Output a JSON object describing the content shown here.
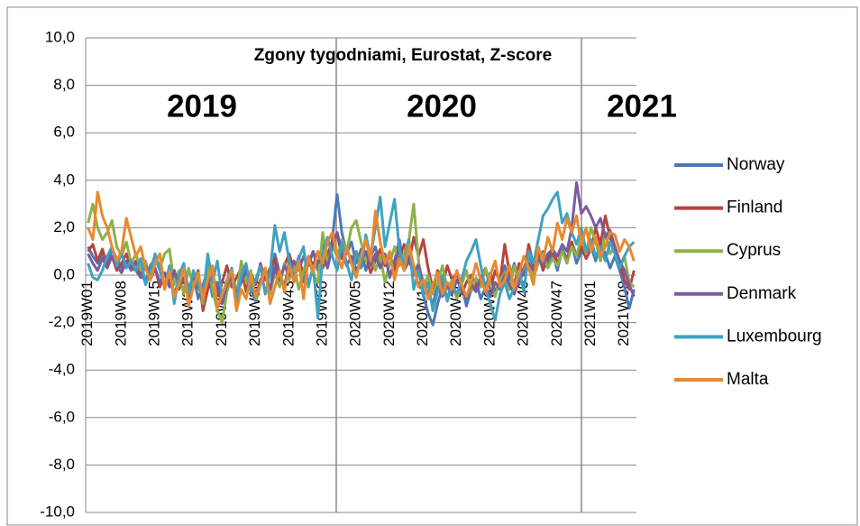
{
  "chart_data": {
    "type": "line",
    "title": "Zgony tygodniami, Eurostat,  Z-score",
    "annotations": [
      "2019",
      "2020",
      "2021"
    ],
    "categories": [
      "2019W01",
      null,
      null,
      null,
      null,
      null,
      null,
      "2019W08",
      null,
      null,
      null,
      null,
      null,
      null,
      "2019W15",
      null,
      null,
      null,
      null,
      null,
      null,
      "2019W22",
      null,
      null,
      null,
      null,
      null,
      null,
      "2019W29",
      null,
      null,
      null,
      null,
      null,
      null,
      "2019W36",
      null,
      null,
      null,
      null,
      null,
      null,
      "2019W43",
      null,
      null,
      null,
      null,
      null,
      null,
      "2019W50",
      null,
      null,
      null,
      null,
      null,
      null,
      "2020W05",
      null,
      null,
      null,
      null,
      null,
      null,
      "2020W12",
      null,
      null,
      null,
      null,
      null,
      null,
      "2020W19",
      null,
      null,
      null,
      null,
      null,
      null,
      "2020W26",
      null,
      null,
      null,
      null,
      null,
      null,
      "2020W33",
      null,
      null,
      null,
      null,
      null,
      null,
      "2020W40",
      null,
      null,
      null,
      null,
      null,
      null,
      "2020W47",
      null,
      null,
      null,
      null,
      null,
      null,
      "2021W01",
      null,
      null,
      null,
      null,
      null,
      null,
      "2021W08",
      null,
      null
    ],
    "series": [
      {
        "name": "Norway",
        "color": "#4a7ab5",
        "values": [
          1.2,
          0.8,
          0.5,
          0.9,
          0.4,
          1.1,
          0.7,
          0.3,
          0.6,
          0.2,
          0.5,
          0.1,
          -0.3,
          0.4,
          0.7,
          0.2,
          -0.5,
          0.1,
          -0.8,
          -0.2,
          0.3,
          -0.6,
          0.0,
          -1.0,
          -0.4,
          0.2,
          -0.9,
          -0.3,
          -1.2,
          -0.5,
          0.1,
          -0.7,
          -0.2,
          0.3,
          -0.6,
          -1.1,
          -0.4,
          0.2,
          -0.8,
          0.9,
          0.1,
          -0.5,
          0.6,
          0.0,
          0.8,
          -0.3,
          0.5,
          1.0,
          0.2,
          1.3,
          0.6,
          1.5,
          3.4,
          1.8,
          0.9,
          1.4,
          0.5,
          1.1,
          0.2,
          0.8,
          1.2,
          0.4,
          0.9,
          -0.1,
          0.6,
          1.5,
          0.3,
          0.8,
          0.0,
          0.5,
          -0.8,
          -1.6,
          -2.1,
          -1.2,
          -0.5,
          -1.0,
          -0.3,
          -0.9,
          -0.4,
          -1.3,
          -0.6,
          -0.2,
          -1.0,
          -0.5,
          0.1,
          -0.7,
          -0.3,
          0.4,
          -0.2,
          0.5,
          -0.4,
          0.3,
          0.8,
          0.1,
          0.6,
          1.0,
          0.4,
          0.9,
          0.2,
          1.1,
          0.7,
          1.3,
          0.5,
          1.0,
          0.8,
          1.2,
          0.6,
          1.4,
          0.9,
          0.3,
          0.8,
          0.2,
          -0.5,
          -1.4,
          -0.6
        ]
      },
      {
        "name": "Finland",
        "color": "#b5443f",
        "values": [
          1.0,
          1.3,
          0.6,
          1.1,
          0.4,
          0.8,
          0.2,
          0.5,
          0.9,
          0.3,
          0.6,
          0.0,
          0.4,
          -0.2,
          0.3,
          -0.5,
          0.1,
          -0.3,
          0.2,
          -0.6,
          -0.1,
          -1.0,
          -0.4,
          0.2,
          -1.5,
          -0.6,
          0.0,
          -0.8,
          -0.3,
          0.4,
          -0.5,
          -0.1,
          0.3,
          -0.7,
          0.1,
          -0.4,
          0.5,
          -0.2,
          0.3,
          0.7,
          -0.3,
          0.4,
          0.9,
          0.2,
          0.6,
          0.1,
          0.8,
          0.4,
          1.0,
          0.3,
          0.9,
          1.4,
          1.8,
          0.7,
          1.2,
          0.5,
          1.0,
          0.3,
          0.8,
          0.1,
          0.6,
          1.1,
          0.4,
          0.9,
          0.2,
          0.7,
          1.3,
          0.5,
          1.6,
          0.8,
          1.5,
          0.3,
          -0.6,
          0.2,
          -0.4,
          0.4,
          -0.2,
          0.1,
          -0.8,
          -0.3,
          0.0,
          -0.5,
          -0.1,
          0.3,
          -0.6,
          0.2,
          -0.3,
          1.3,
          0.1,
          -0.4,
          0.5,
          0.0,
          1.3,
          0.4,
          0.9,
          0.2,
          0.7,
          1.1,
          0.5,
          1.0,
          0.6,
          1.4,
          0.8,
          1.2,
          0.7,
          1.1,
          2.0,
          1.3,
          2.5,
          1.6,
          1.0,
          0.5,
          -0.2,
          -0.6,
          0.2
        ]
      },
      {
        "name": "Cyprus",
        "color": "#8fb04a",
        "values": [
          2.2,
          3.0,
          2.0,
          1.5,
          1.8,
          2.3,
          1.2,
          0.8,
          1.4,
          0.5,
          0.9,
          0.2,
          0.6,
          -0.2,
          0.7,
          0.3,
          0.9,
          1.1,
          -0.4,
          0.2,
          -0.8,
          0.3,
          -0.5,
          0.1,
          -1.2,
          0.4,
          -0.6,
          -1.5,
          -2.0,
          -0.7,
          0.0,
          -0.9,
          0.6,
          -0.3,
          0.2,
          -1.0,
          -0.4,
          0.3,
          -0.8,
          0.1,
          -0.5,
          0.5,
          -0.2,
          0.4,
          -0.6,
          0.2,
          0.8,
          0.0,
          -0.3,
          1.8,
          0.5,
          1.2,
          0.8,
          1.5,
          1.0,
          2.0,
          2.3,
          1.4,
          0.6,
          1.0,
          0.2,
          0.8,
          -0.3,
          0.5,
          1.2,
          0.4,
          0.9,
          1.5,
          3.0,
          0.6,
          -0.5,
          0.0,
          -0.8,
          -0.3,
          0.4,
          -0.6,
          -0.2,
          -1.0,
          -0.4,
          0.2,
          -0.7,
          -0.1,
          -0.5,
          0.3,
          -0.4,
          -0.9,
          -0.2,
          0.1,
          -0.6,
          0.4,
          -0.3,
          0.2,
          0.6,
          -0.1,
          0.5,
          0.9,
          0.3,
          0.7,
          0.4,
          1.0,
          0.5,
          1.2,
          0.8,
          1.6,
          0.9,
          2.0,
          1.4,
          0.6,
          1.8,
          0.9,
          1.2,
          0.4,
          0.8,
          -0.3,
          -0.5
        ]
      },
      {
        "name": "Denmark",
        "color": "#7b5a9e",
        "values": [
          0.9,
          0.5,
          0.2,
          0.7,
          0.3,
          0.8,
          0.4,
          0.1,
          0.6,
          0.3,
          0.2,
          -0.1,
          0.4,
          0.0,
          0.3,
          -0.3,
          0.1,
          -0.5,
          0.2,
          -0.4,
          -0.2,
          -0.7,
          0.1,
          -0.5,
          -0.9,
          -0.3,
          0.0,
          -0.6,
          -1.2,
          -0.4,
          -0.1,
          -0.8,
          -0.3,
          0.2,
          -0.5,
          -0.9,
          -0.2,
          0.1,
          -0.6,
          0.3,
          -0.2,
          0.4,
          0.0,
          0.6,
          0.2,
          0.8,
          0.4,
          1.0,
          0.5,
          0.9,
          0.3,
          1.2,
          1.8,
          1.0,
          0.4,
          0.8,
          0.2,
          0.6,
          1.0,
          0.4,
          0.9,
          0.3,
          0.7,
          0.0,
          0.5,
          1.1,
          0.2,
          0.6,
          0.1,
          0.4,
          -0.3,
          -0.8,
          -1.2,
          -0.5,
          -0.9,
          -0.4,
          -0.8,
          -0.2,
          -0.6,
          -1.0,
          -0.4,
          -0.7,
          -0.1,
          -0.5,
          -0.9,
          -0.3,
          -0.6,
          0.0,
          -0.4,
          -0.8,
          -0.2,
          0.1,
          0.5,
          0.2,
          0.7,
          0.4,
          0.9,
          1.1,
          0.8,
          1.3,
          1.0,
          2.0,
          3.9,
          2.6,
          2.9,
          2.5,
          2.0,
          2.4,
          1.6,
          1.9,
          1.2,
          0.6,
          0.2,
          -0.4,
          -0.9
        ]
      },
      {
        "name": "Luxembourg",
        "color": "#3ea2c0",
        "values": [
          0.5,
          -0.1,
          -0.2,
          0.2,
          0.8,
          1.2,
          0.4,
          0.9,
          0.3,
          0.6,
          0.2,
          0.7,
          -0.4,
          0.1,
          0.9,
          0.3,
          -0.5,
          0.4,
          -1.2,
          0.0,
          0.5,
          -0.8,
          0.2,
          -0.4,
          -1.0,
          0.9,
          -0.3,
          0.6,
          -0.9,
          -0.2,
          0.3,
          -1.1,
          0.0,
          0.5,
          -0.7,
          -0.2,
          0.4,
          -0.8,
          0.1,
          2.1,
          1.0,
          1.8,
          0.6,
          -0.3,
          0.7,
          1.2,
          -0.5,
          0.4,
          -1.8,
          0.9,
          1.6,
          0.8,
          0.2,
          1.4,
          0.5,
          -0.2,
          1.0,
          0.3,
          1.7,
          0.8,
          2.0,
          3.3,
          1.2,
          2.2,
          3.2,
          1.1,
          0.4,
          1.5,
          -0.6,
          0.2,
          -0.9,
          -0.3,
          -1.5,
          -0.7,
          0.0,
          -1.1,
          -0.4,
          -0.8,
          -0.2,
          0.6,
          1.0,
          1.5,
          0.4,
          -0.6,
          -1.2,
          -1.9,
          -0.8,
          -0.3,
          -1.0,
          -0.5,
          0.2,
          -0.7,
          1.0,
          0.5,
          1.5,
          2.5,
          2.8,
          3.2,
          3.5,
          2.2,
          2.6,
          1.8,
          1.3,
          2.0,
          1.0,
          1.5,
          0.8,
          1.2,
          0.6,
          1.4,
          0.9,
          0.3,
          0.8,
          1.2,
          1.4
        ]
      },
      {
        "name": "Malta",
        "color": "#e8892f",
        "values": [
          2.0,
          1.5,
          3.5,
          2.5,
          2.0,
          1.2,
          0.6,
          1.0,
          2.4,
          1.6,
          0.8,
          1.2,
          0.3,
          -0.2,
          0.5,
          0.9,
          -0.6,
          0.2,
          -0.9,
          -0.4,
          0.3,
          -1.3,
          -0.5,
          0.1,
          -1.0,
          -0.2,
          0.4,
          -1.4,
          -0.8,
          -0.3,
          0.2,
          -1.5,
          -0.6,
          -1.0,
          0.0,
          -0.9,
          -0.4,
          0.3,
          -1.2,
          -0.5,
          0.2,
          -0.7,
          0.4,
          -0.3,
          0.6,
          -1.0,
          0.8,
          0.1,
          1.0,
          0.5,
          1.4,
          1.8,
          0.9,
          0.3,
          1.2,
          0.5,
          -0.1,
          0.8,
          1.5,
          0.6,
          2.7,
          1.4,
          0.5,
          1.0,
          -0.2,
          0.7,
          0.2,
          1.3,
          0.4,
          -0.5,
          -0.2,
          -1.0,
          -0.4,
          0.1,
          -0.8,
          -0.3,
          -0.6,
          0.2,
          -0.4,
          -0.9,
          -0.3,
          0.5,
          -0.2,
          -0.7,
          0.0,
          0.6,
          -0.5,
          -0.2,
          0.4,
          -0.6,
          0.1,
          0.8,
          0.3,
          -0.4,
          1.2,
          0.6,
          1.6,
          1.0,
          2.2,
          1.5,
          2.4,
          1.8,
          2.5,
          1.3,
          2.0,
          1.0,
          1.6,
          0.8,
          1.2,
          1.8,
          1.7,
          1.0,
          1.5,
          1.2,
          0.6
        ]
      }
    ],
    "ylim": [
      -10,
      10
    ],
    "yticks": [
      {
        "value": -10,
        "label": "-10,0"
      },
      {
        "value": -8,
        "label": "-8,0"
      },
      {
        "value": -6,
        "label": "-6,0"
      },
      {
        "value": -4,
        "label": "-4,0"
      },
      {
        "value": -2,
        "label": "-2,0"
      },
      {
        "value": 0,
        "label": "0,0"
      },
      {
        "value": 2,
        "label": "2,0"
      },
      {
        "value": 4,
        "label": "4,0"
      },
      {
        "value": 6,
        "label": "6,0"
      },
      {
        "value": 8,
        "label": "8,0"
      },
      {
        "value": 10,
        "label": "10,0"
      }
    ],
    "grid": true
  }
}
